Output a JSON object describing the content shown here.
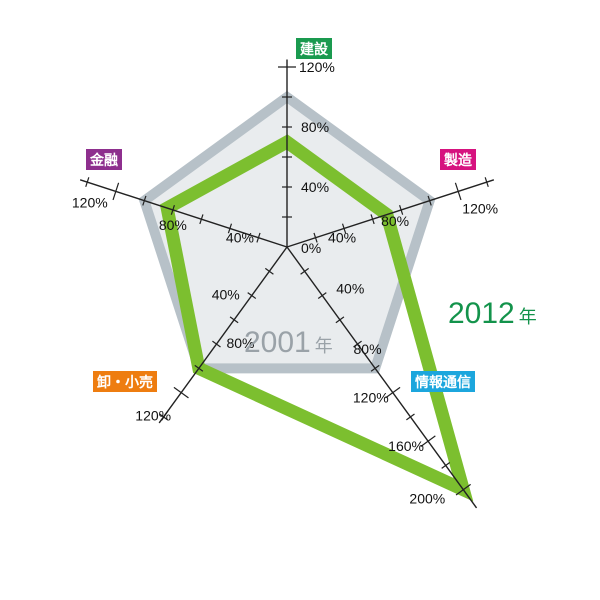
{
  "chart_data": {
    "type": "radar",
    "axes": [
      {
        "label": "建設",
        "color": "#1a9a4f",
        "tick_labels": [
          "0%",
          "40%",
          "80%",
          "120%"
        ]
      },
      {
        "label": "製造",
        "color": "#d6137f",
        "tick_labels": [
          "40%",
          "80%",
          "120%"
        ]
      },
      {
        "label": "情報通信",
        "color": "#1ca6dd",
        "tick_labels": [
          "40%",
          "80%",
          "120%",
          "160%",
          "200%"
        ]
      },
      {
        "label": "卸・小売",
        "color": "#ee7d10",
        "tick_labels": [
          "40%",
          "80%",
          "120%"
        ]
      },
      {
        "label": "金融",
        "color": "#8e2f8e",
        "tick_labels": [
          "40%",
          "80%",
          "120%"
        ]
      }
    ],
    "series": [
      {
        "name": "2001年",
        "color": "#b7c1c8",
        "fill": "#e9ecee",
        "values": [
          100,
          100,
          100,
          100,
          100
        ]
      },
      {
        "name": "2012年",
        "color": "#7cbf2f",
        "values": [
          70,
          70,
          200,
          100,
          84
        ]
      }
    ],
    "year_labels": {
      "2001": {
        "number": "2001",
        "suffix": "年",
        "color": "#9aa2a8"
      },
      "2012": {
        "number": "2012",
        "suffix": "年",
        "color": "#13934b"
      }
    },
    "tick_step": 20
  }
}
